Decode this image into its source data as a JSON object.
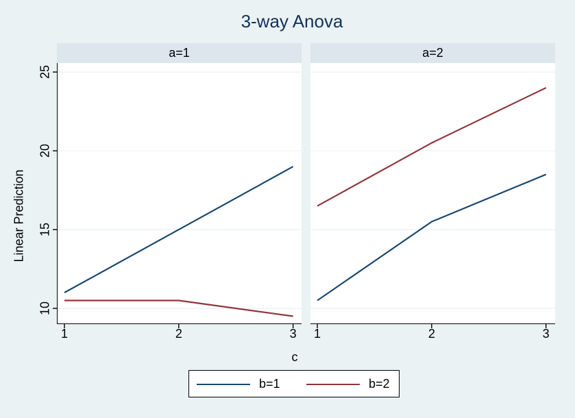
{
  "colors": {
    "background": "#eaf2f3",
    "panel_header": "#dce6ec",
    "plot_background": "#ffffff",
    "gridline": "#e6eef2",
    "axis": "#000000",
    "title_color": "#13315c",
    "series_b1": "#1a476f",
    "series_b2": "#90353b"
  },
  "chart_data": {
    "type": "line",
    "title": "3-way Anova",
    "xlabel": "c",
    "ylabel": "Linear Prediction",
    "x": [
      1,
      2,
      3
    ],
    "xticks": [
      1,
      2,
      3
    ],
    "yticks": [
      10,
      15,
      20,
      25
    ],
    "xlim": [
      0.94,
      3.08
    ],
    "ylim": [
      9.0,
      25.57
    ],
    "grid": true,
    "legend_position": "bottom",
    "panels": [
      {
        "label": "a=1",
        "series": [
          {
            "name": "b=1",
            "values": [
              11,
              15,
              19
            ]
          },
          {
            "name": "b=2",
            "values": [
              10.5,
              10.5,
              9.5
            ]
          }
        ]
      },
      {
        "label": "a=2",
        "series": [
          {
            "name": "b=1",
            "values": [
              10.5,
              15.5,
              18.5
            ]
          },
          {
            "name": "b=2",
            "values": [
              16.5,
              20.5,
              24
            ]
          }
        ]
      }
    ],
    "legend": [
      {
        "label": "b=1",
        "color_key": "series_b1"
      },
      {
        "label": "b=2",
        "color_key": "series_b2"
      }
    ]
  }
}
